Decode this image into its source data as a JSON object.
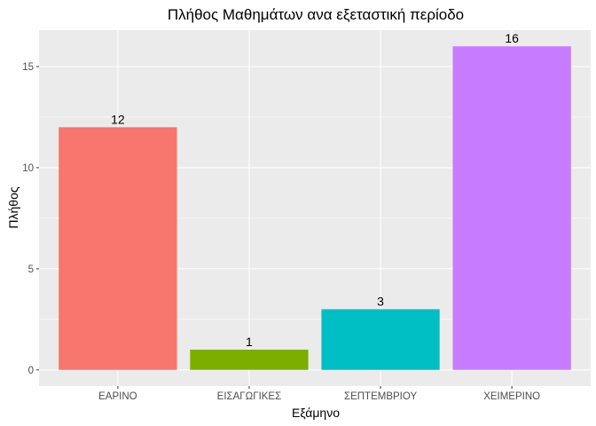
{
  "chart_data": {
    "type": "bar",
    "title": "Πλήθος Μαθημάτων ανα εξεταστική περίοδο",
    "xlabel": "Εξάμηνο",
    "ylabel": "Πλήθος",
    "categories": [
      "ΕΑΡΙΝΟ",
      "ΕΙΣΑΓΩΓΙΚΕΣ",
      "ΣΕΠΤΕΜΒΡΙΟΥ",
      "ΧΕΙΜΕΡΙΝΟ"
    ],
    "values": [
      12,
      1,
      3,
      16
    ],
    "data_labels": [
      "12",
      "1",
      "3",
      "16"
    ],
    "colors": [
      "#F8766D",
      "#7CAE00",
      "#00BFC4",
      "#C77CFF"
    ],
    "ylim": [
      -0.8,
      16.8
    ],
    "yticks": [
      0,
      5,
      10,
      15
    ],
    "ytick_labels": [
      "0",
      "5",
      "10",
      "15"
    ],
    "grid": true,
    "legend": "none",
    "panel_background": "#EBEBEB",
    "grid_color": "#FFFFFF"
  }
}
